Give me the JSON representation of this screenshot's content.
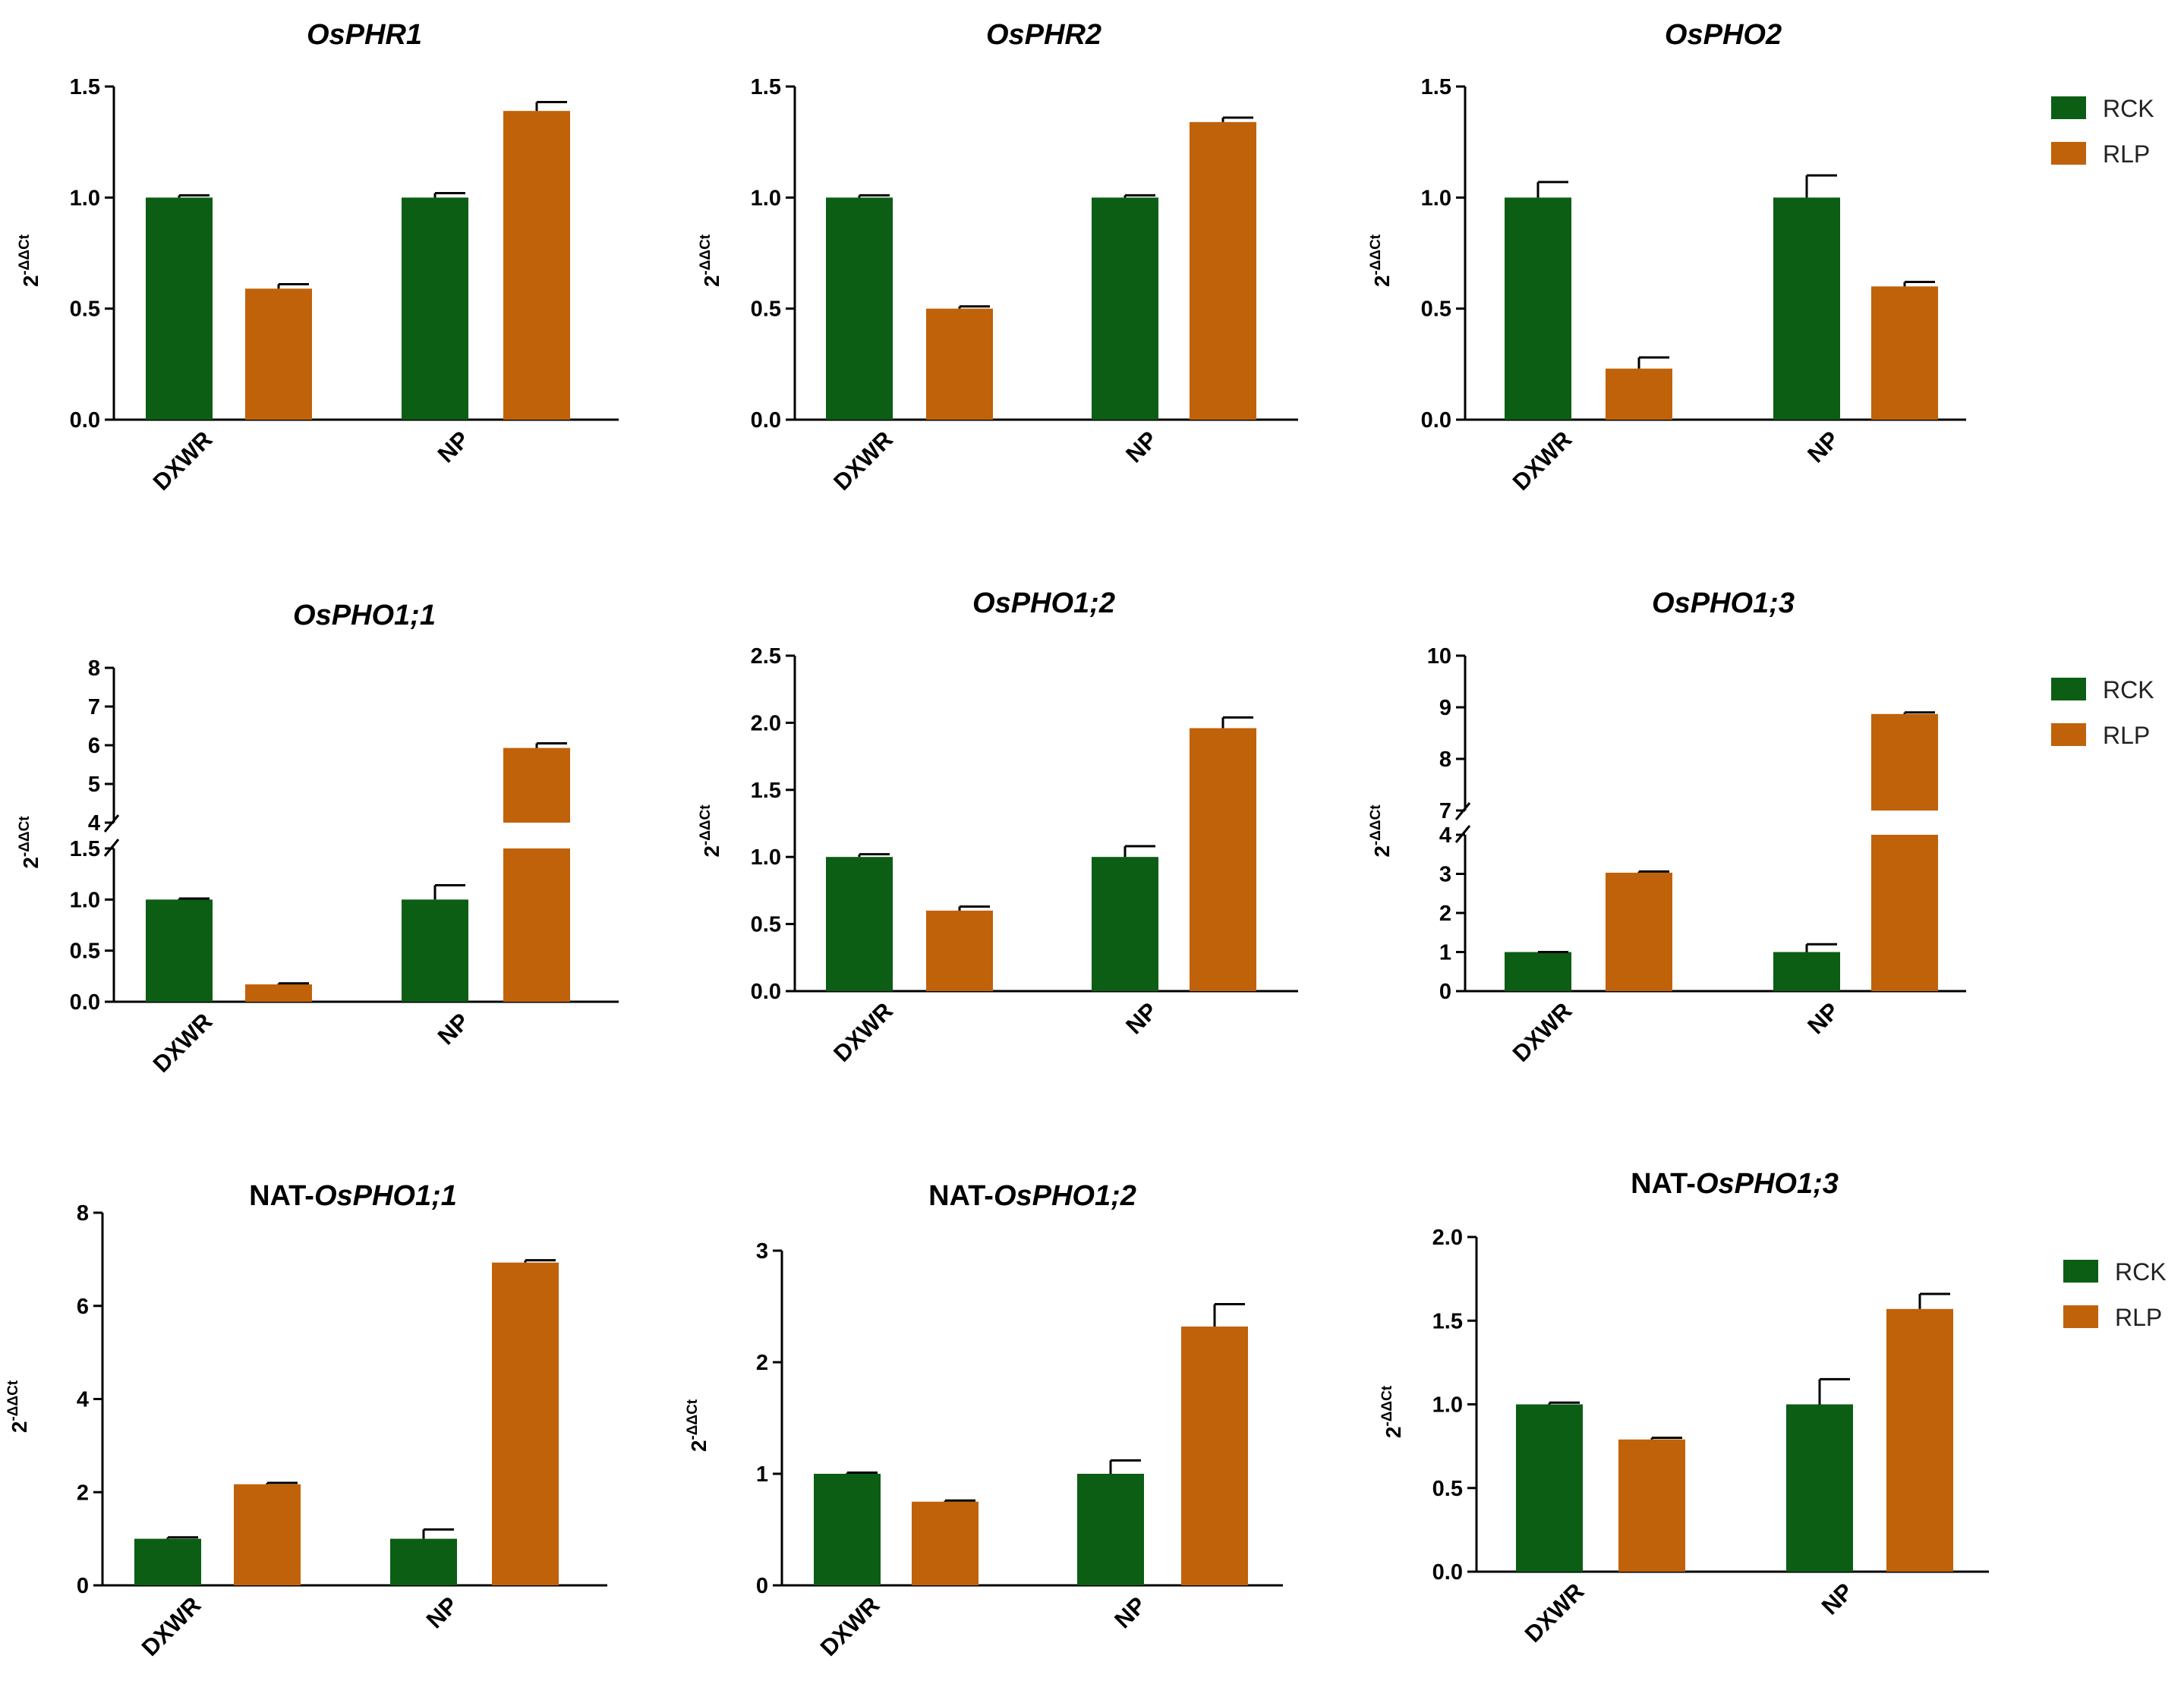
{
  "colors": {
    "rck": "#0b5e13",
    "rlp": "#c0620a",
    "axis": "#000000"
  },
  "chart_data": [
    {
      "type": "bar",
      "title_plain": "",
      "title_italic": "OsPHR1",
      "categories": [
        "DXWR",
        "NP"
      ],
      "series": [
        {
          "name": "RCK",
          "values": [
            1.0,
            1.0
          ],
          "errors": [
            0.01,
            0.02
          ]
        },
        {
          "name": "RLP",
          "values": [
            0.59,
            1.39
          ],
          "errors": [
            0.02,
            0.04
          ]
        }
      ],
      "ylabel_base": "2",
      "ylabel_sup": "-ΔΔCt",
      "yticks": [
        "0.0",
        "0.5",
        "1.0",
        "1.5"
      ],
      "ylim": [
        0,
        1.5
      ],
      "legend": [
        "RCK",
        "RLP"
      ]
    },
    {
      "type": "bar",
      "title_plain": "",
      "title_italic": "OsPHR2",
      "categories": [
        "DXWR",
        "NP"
      ],
      "series": [
        {
          "name": "RCK",
          "values": [
            1.0,
            1.0
          ],
          "errors": [
            0.01,
            0.01
          ]
        },
        {
          "name": "RLP",
          "values": [
            0.5,
            1.34
          ],
          "errors": [
            0.01,
            0.02
          ]
        }
      ],
      "ylabel_base": "2",
      "ylabel_sup": "-ΔΔCt",
      "yticks": [
        "0.0",
        "0.5",
        "1.0",
        "1.5"
      ],
      "ylim": [
        0,
        1.5
      ]
    },
    {
      "type": "bar",
      "title_plain": "",
      "title_italic": "OsPHO2",
      "categories": [
        "DXWR",
        "NP"
      ],
      "series": [
        {
          "name": "RCK",
          "values": [
            1.0,
            1.0
          ],
          "errors": [
            0.07,
            0.1
          ]
        },
        {
          "name": "RLP",
          "values": [
            0.23,
            0.6
          ],
          "errors": [
            0.05,
            0.02
          ]
        }
      ],
      "ylabel_base": "2",
      "ylabel_sup": "-ΔΔCt",
      "yticks": [
        "0.0",
        "0.5",
        "1.0",
        "1.5"
      ],
      "ylim": [
        0,
        1.5
      ]
    },
    {
      "type": "bar",
      "title_plain": "",
      "title_italic": "OsPHO1;1",
      "categories": [
        "DXWR",
        "NP"
      ],
      "series": [
        {
          "name": "RCK",
          "values": [
            1.0,
            1.0
          ],
          "errors": [
            0.01,
            0.14
          ]
        },
        {
          "name": "RLP",
          "values": [
            0.17,
            5.93
          ],
          "errors": [
            0.01,
            0.12
          ]
        }
      ],
      "ylabel_base": "2",
      "ylabel_sup": "-ΔΔCt",
      "yticks_lower": [
        "0.0",
        "0.5",
        "1.0",
        "1.5"
      ],
      "yticks_upper": [
        "4",
        "5",
        "6",
        "7",
        "8"
      ],
      "ylim_lower": [
        0,
        1.5
      ],
      "ylim_upper": [
        4,
        8
      ],
      "legend": [
        "RCK",
        "RLP"
      ]
    },
    {
      "type": "bar",
      "title_plain": "",
      "title_italic": "OsPHO1;2",
      "categories": [
        "DXWR",
        "NP"
      ],
      "series": [
        {
          "name": "RCK",
          "values": [
            1.0,
            1.0
          ],
          "errors": [
            0.02,
            0.08
          ]
        },
        {
          "name": "RLP",
          "values": [
            0.6,
            1.96
          ],
          "errors": [
            0.03,
            0.08
          ]
        }
      ],
      "ylabel_base": "2",
      "ylabel_sup": "-ΔΔCt",
      "yticks": [
        "0.0",
        "0.5",
        "1.0",
        "1.5",
        "2.0",
        "2.5"
      ],
      "ylim": [
        0,
        2.5
      ]
    },
    {
      "type": "bar",
      "title_plain": "",
      "title_italic": "OsPHO1;3",
      "categories": [
        "DXWR",
        "NP"
      ],
      "series": [
        {
          "name": "RCK",
          "values": [
            1.0,
            1.0
          ],
          "errors": [
            0.0,
            0.2
          ]
        },
        {
          "name": "RLP",
          "values": [
            3.03,
            8.87
          ],
          "errors": [
            0.03,
            0.03
          ]
        }
      ],
      "ylabel_base": "2",
      "ylabel_sup": "-ΔΔCt",
      "yticks_lower": [
        "0",
        "1",
        "2",
        "3",
        "4"
      ],
      "yticks_upper": [
        "7",
        "8",
        "9",
        "10"
      ],
      "ylim_lower": [
        0,
        4
      ],
      "ylim_upper": [
        7,
        10
      ],
      "legend": [
        "RCK",
        "RLP"
      ]
    },
    {
      "type": "bar",
      "title_plain": "NAT-",
      "title_italic": "OsPHO1;1",
      "categories": [
        "DXWR",
        "NP"
      ],
      "series": [
        {
          "name": "RCK",
          "values": [
            1.0,
            1.0
          ],
          "errors": [
            0.03,
            0.2
          ]
        },
        {
          "name": "RLP",
          "values": [
            2.17,
            6.93
          ],
          "errors": [
            0.03,
            0.05
          ]
        }
      ],
      "ylabel_base": "2",
      "ylabel_sup": "-ΔΔCt",
      "yticks": [
        "0",
        "2",
        "4",
        "6",
        "8"
      ],
      "ylim": [
        0,
        8
      ]
    },
    {
      "type": "bar",
      "title_plain": "NAT-",
      "title_italic": "OsPHO1;2",
      "categories": [
        "DXWR",
        "NP"
      ],
      "series": [
        {
          "name": "RCK",
          "values": [
            1.0,
            1.0
          ],
          "errors": [
            0.01,
            0.12
          ]
        },
        {
          "name": "RLP",
          "values": [
            0.75,
            2.32
          ],
          "errors": [
            0.01,
            0.2
          ]
        }
      ],
      "ylabel_base": "2",
      "ylabel_sup": "-ΔΔCt",
      "yticks": [
        "0",
        "1",
        "2",
        "3"
      ],
      "ylim": [
        0,
        3
      ]
    },
    {
      "type": "bar",
      "title_plain": "NAT-",
      "title_italic": "OsPHO1;3",
      "categories": [
        "DXWR",
        "NP"
      ],
      "series": [
        {
          "name": "RCK",
          "values": [
            1.0,
            1.0
          ],
          "errors": [
            0.01,
            0.15
          ]
        },
        {
          "name": "RLP",
          "values": [
            0.79,
            1.57
          ],
          "errors": [
            0.01,
            0.09
          ]
        }
      ],
      "ylabel_base": "2",
      "ylabel_sup": "-ΔΔCt",
      "yticks": [
        "0.0",
        "0.5",
        "1.0",
        "1.5",
        "2.0"
      ],
      "ylim": [
        0,
        2.0
      ],
      "legend": [
        "RCK",
        "RLP"
      ]
    }
  ]
}
